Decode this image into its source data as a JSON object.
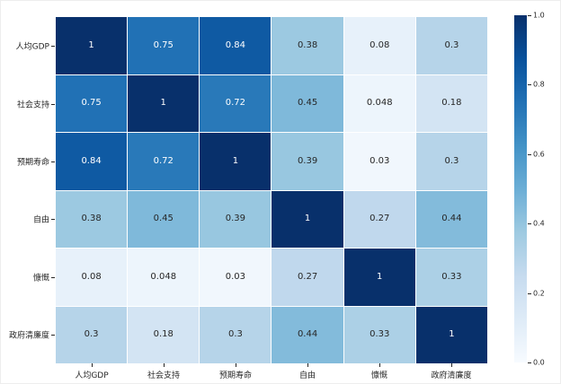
{
  "figure": {
    "background_color": "#ffffff",
    "annotation_text_dark": "#262626",
    "annotation_text_light": "#ffffff",
    "axis_text_color": "#262626"
  },
  "chart_data": {
    "type": "heatmap",
    "title": "",
    "xlabel": "",
    "ylabel": "",
    "categories": [
      "人均GDP",
      "社会支持",
      "预期寿命",
      "自由",
      "慷慨",
      "政府清廉度"
    ],
    "matrix": [
      [
        1,
        0.75,
        0.84,
        0.38,
        0.08,
        0.3
      ],
      [
        0.75,
        1,
        0.72,
        0.45,
        0.048,
        0.18
      ],
      [
        0.84,
        0.72,
        1,
        0.39,
        0.03,
        0.3
      ],
      [
        0.38,
        0.45,
        0.39,
        1,
        0.27,
        0.44
      ],
      [
        0.08,
        0.048,
        0.03,
        0.27,
        1,
        0.33
      ],
      [
        0.3,
        0.18,
        0.3,
        0.44,
        0.33,
        1
      ]
    ],
    "vmin": 0.0,
    "vmax": 1.0,
    "grid_line_color": "#ffffff",
    "annotations_on": true,
    "legend_position": "colorbar-right",
    "colormap": {
      "name": "Blues",
      "stops": [
        {
          "pos": 0.0,
          "color": "#f7fbff"
        },
        {
          "pos": 0.125,
          "color": "#deebf7"
        },
        {
          "pos": 0.25,
          "color": "#c6dbef"
        },
        {
          "pos": 0.375,
          "color": "#9ecae1"
        },
        {
          "pos": 0.5,
          "color": "#6baed6"
        },
        {
          "pos": 0.625,
          "color": "#4292c6"
        },
        {
          "pos": 0.75,
          "color": "#2171b5"
        },
        {
          "pos": 0.875,
          "color": "#08519c"
        },
        {
          "pos": 1.0,
          "color": "#08306b"
        }
      ]
    },
    "colorbar": {
      "ticks": [
        1.0,
        0.8,
        0.6,
        0.4,
        0.2,
        0.0
      ],
      "tick_labels": [
        "1.0",
        "0.8",
        "0.6",
        "0.4",
        "0.2",
        "0.0"
      ]
    }
  }
}
